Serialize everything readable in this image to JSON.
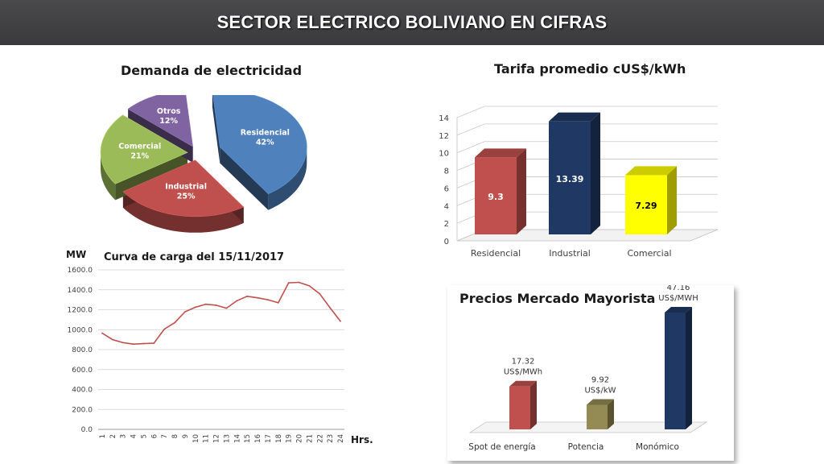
{
  "header": {
    "title": "SECTOR ELECTRICO BOLIVIANO EN CIFRAS"
  },
  "colors": {
    "red": "#c0504d",
    "blue": "#1f3864",
    "green": "#9bbb59",
    "purple": "#8064a2",
    "steel": "#4f81bd",
    "yellow": "#ffff00",
    "olive": "#948a54"
  },
  "chart_data": [
    {
      "type": "pie",
      "title": "Demanda de electricidad",
      "slices": [
        {
          "label": "Residencial",
          "value": 42,
          "display": "42%"
        },
        {
          "label": "Industrial",
          "value": 25,
          "display": "25%"
        },
        {
          "label": "Comercial",
          "value": 21,
          "display": "21%"
        },
        {
          "label": "Otros",
          "value": 12,
          "display": "12%"
        }
      ]
    },
    {
      "type": "bar",
      "title": "Tarifa promedio cUS$/kWh",
      "categories": [
        "Residencial",
        "Industrial",
        "Comercial"
      ],
      "values": [
        9.3,
        13.39,
        7.29
      ],
      "value_labels": [
        "9.3",
        "13.39",
        "7.29"
      ],
      "ylim": [
        0,
        14
      ],
      "yticks": [
        "0",
        "2",
        "4",
        "6",
        "8",
        "10",
        "12",
        "14"
      ],
      "grid": true
    },
    {
      "type": "line",
      "title": "Curva de carga del 15/11/2017",
      "ylabel": "MW",
      "xlabel": "Hrs.",
      "x": [
        1,
        2,
        3,
        4,
        5,
        6,
        7,
        8,
        9,
        10,
        11,
        12,
        13,
        14,
        15,
        16,
        17,
        18,
        19,
        20,
        21,
        22,
        23,
        24
      ],
      "y": [
        965,
        900,
        870,
        855,
        860,
        865,
        1005,
        1070,
        1180,
        1225,
        1255,
        1245,
        1215,
        1290,
        1335,
        1320,
        1300,
        1270,
        1470,
        1475,
        1440,
        1360,
        1220,
        1085
      ],
      "ylim": [
        0,
        1600
      ],
      "yticks": [
        "0.0",
        "200.0",
        "400.0",
        "600.0",
        "800.0",
        "1000.0",
        "1200.0",
        "1400.0",
        "1600.0"
      ],
      "grid": true
    },
    {
      "type": "bar",
      "title": "Precios Mercado Mayorista",
      "categories": [
        "Spot de energía",
        "Potencia",
        "Monómico"
      ],
      "values": [
        17.32,
        9.92,
        47.16
      ],
      "value_labels": [
        "17.32",
        "9.92",
        "47.16"
      ],
      "units": [
        "US$/MWh",
        "US$/kW",
        "US$/MWH"
      ]
    }
  ]
}
